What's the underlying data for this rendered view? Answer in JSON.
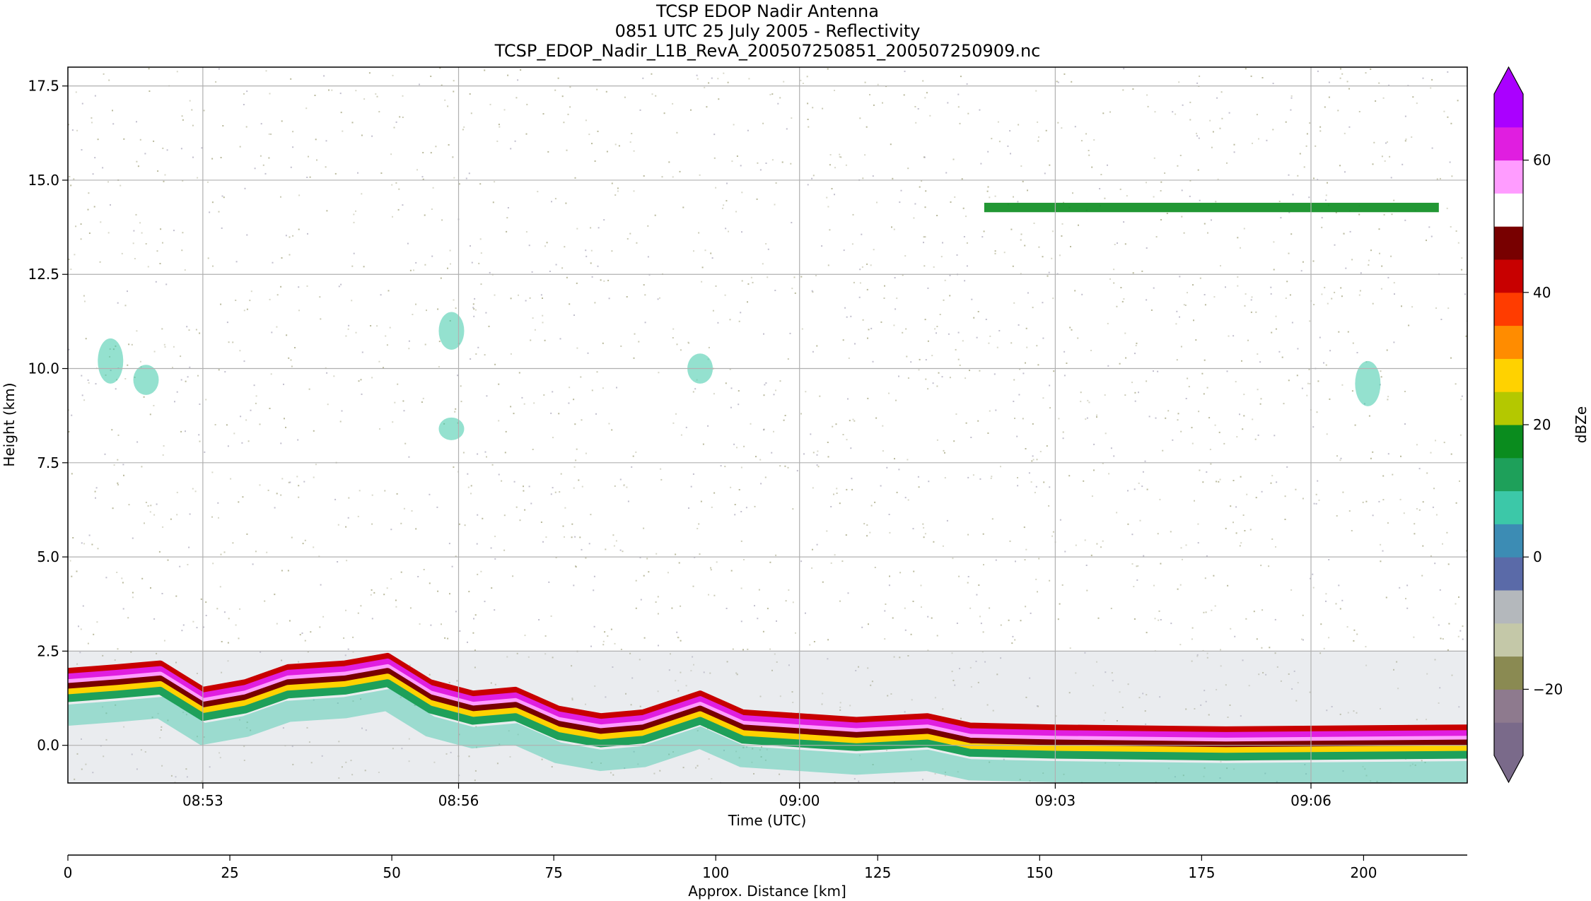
{
  "titles": [
    "TCSP EDOP Nadir Antenna",
    "0851 UTC 25 July 2005 - Reflectivity",
    "TCSP_EDOP_Nadir_L1B_RevA_200507250851_200507250909.nc"
  ],
  "chart_data": {
    "type": "heatmap",
    "xlabel": "Time (UTC)",
    "ylabel": "Height (km)",
    "secondary_xlabel": "Approx. Distance [km]",
    "colorbar_label": "dBZe",
    "x_range_minutes_utc": [
      "08:51:25",
      "09:07:50"
    ],
    "ylim": [
      -1.0,
      18.0
    ],
    "x_ticks": [
      "08:53",
      "08:56",
      "09:00",
      "09:03",
      "09:06"
    ],
    "y_ticks": [
      "0.0",
      "2.5",
      "5.0",
      "7.5",
      "10.0",
      "12.5",
      "15.0",
      "17.5"
    ],
    "distance_range_km": [
      0,
      216
    ],
    "distance_ticks": [
      "0",
      "25",
      "50",
      "75",
      "100",
      "125",
      "150",
      "175",
      "200"
    ],
    "colorbar_range_dbz": [
      -30,
      70
    ],
    "colorbar_ticks": [
      "−20",
      "0",
      "20",
      "40",
      "60"
    ],
    "colorbar_extend": "both",
    "grid": true,
    "features": {
      "surface_return_km": [
        {
          "t": "08:51:25",
          "h": 1.5
        },
        {
          "t": "08:52:00",
          "h": 1.6
        },
        {
          "t": "08:52:30",
          "h": 1.7
        },
        {
          "t": "08:53:00",
          "h": 1.0
        },
        {
          "t": "08:53:30",
          "h": 1.2
        },
        {
          "t": "08:54:00",
          "h": 1.6
        },
        {
          "t": "08:54:40",
          "h": 1.7
        },
        {
          "t": "08:55:10",
          "h": 1.9
        },
        {
          "t": "08:55:40",
          "h": 1.2
        },
        {
          "t": "08:56:10",
          "h": 0.9
        },
        {
          "t": "08:56:40",
          "h": 1.0
        },
        {
          "t": "08:57:10",
          "h": 0.5
        },
        {
          "t": "08:57:40",
          "h": 0.3
        },
        {
          "t": "08:58:10",
          "h": 0.4
        },
        {
          "t": "08:58:50",
          "h": 0.9
        },
        {
          "t": "08:59:20",
          "h": 0.4
        },
        {
          "t": "09:00:00",
          "h": 0.3
        },
        {
          "t": "09:00:40",
          "h": 0.2
        },
        {
          "t": "09:01:30",
          "h": 0.3
        },
        {
          "t": "09:02:00",
          "h": 0.05
        },
        {
          "t": "09:03:00",
          "h": 0.0
        },
        {
          "t": "09:05:00",
          "h": -0.05
        },
        {
          "t": "09:07:50",
          "h": 0.0
        }
      ],
      "cirrus_layer_km": 14.3,
      "boundary_layer_top_km": 2.5
    }
  },
  "colors": {
    "colormap": [
      "#7a6a8a",
      "#8e7a8e",
      "#8a8a52",
      "#c4c8a8",
      "#b4b8bc",
      "#5a6aa8",
      "#3c8cb4",
      "#3cc8a8",
      "#1ea05a",
      "#0a8c1e",
      "#b4c800",
      "#ffd200",
      "#ff8c00",
      "#ff3c00",
      "#c80000",
      "#780000",
      "#ffffff",
      "#ff9cff",
      "#e01ee0",
      "#aa00ff"
    ],
    "noise": "#b4b496",
    "grid": "#b0b0b0"
  }
}
